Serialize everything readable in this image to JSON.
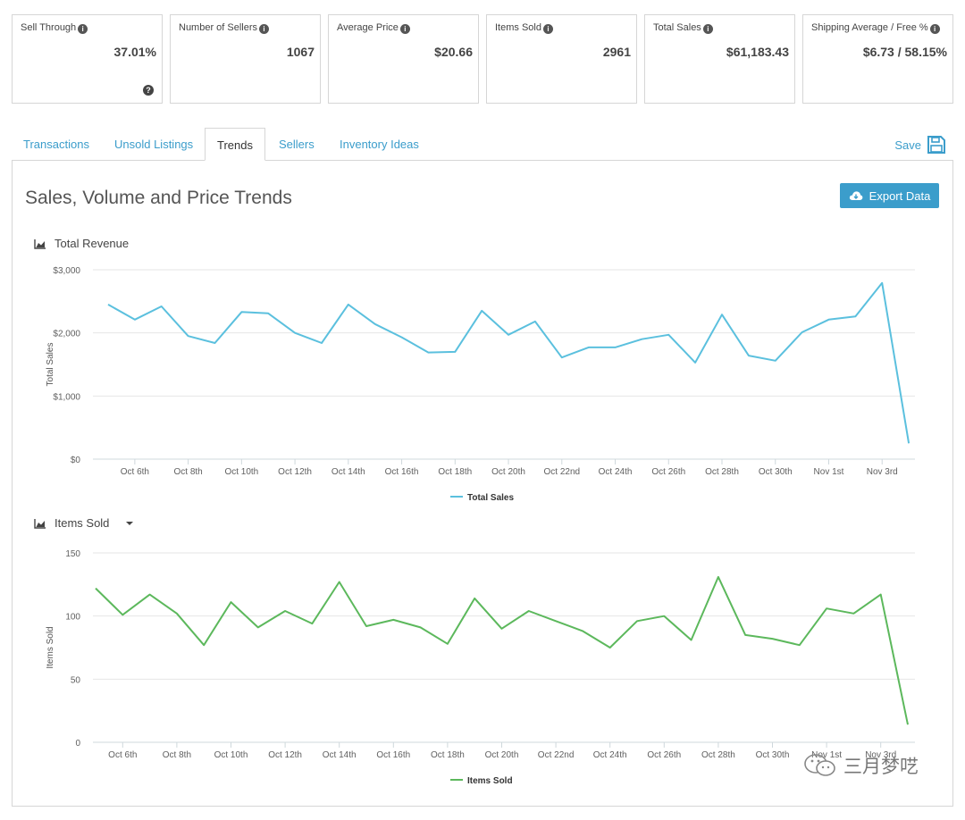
{
  "stats": [
    {
      "label": "Sell Through",
      "value": "37.01%",
      "help": true
    },
    {
      "label": "Number of Sellers",
      "value": "1067"
    },
    {
      "label": "Average Price",
      "value": "$20.66"
    },
    {
      "label": "Items Sold",
      "value": "2961"
    },
    {
      "label": "Total Sales",
      "value": "$61,183.43"
    },
    {
      "label": "Shipping Average / Free %",
      "value": "$6.73 / 58.15%"
    }
  ],
  "tabs": [
    {
      "label": "Transactions",
      "active": false
    },
    {
      "label": "Unsold Listings",
      "active": false
    },
    {
      "label": "Trends",
      "active": true
    },
    {
      "label": "Sellers",
      "active": false
    },
    {
      "label": "Inventory Ideas",
      "active": false
    }
  ],
  "toolbar": {
    "save_label": "Save",
    "export_label": "Export Data"
  },
  "panel": {
    "title": "Sales, Volume and Price Trends"
  },
  "watermark": {
    "text": "三月梦呓"
  },
  "colors": {
    "accent": "#3b9dcb",
    "revenue_line": "#5bc0de",
    "items_line": "#5cb85c"
  },
  "chart_data": [
    {
      "type": "line",
      "title": "Total Revenue",
      "ylabel": "Total Sales",
      "xlabel": "",
      "x": [
        "Oct 5",
        "Oct 6",
        "Oct 7",
        "Oct 8",
        "Oct 9",
        "Oct 10",
        "Oct 11",
        "Oct 12",
        "Oct 13",
        "Oct 14",
        "Oct 15",
        "Oct 16",
        "Oct 17",
        "Oct 18",
        "Oct 19",
        "Oct 20",
        "Oct 21",
        "Oct 22",
        "Oct 23",
        "Oct 24",
        "Oct 25",
        "Oct 26",
        "Oct 27",
        "Oct 28",
        "Oct 29",
        "Oct 30",
        "Oct 31",
        "Nov 1",
        "Nov 2",
        "Nov 3",
        "Nov 4"
      ],
      "tick_labels": [
        "Oct 6th",
        "Oct 8th",
        "Oct 10th",
        "Oct 12th",
        "Oct 14th",
        "Oct 16th",
        "Oct 18th",
        "Oct 20th",
        "Oct 22nd",
        "Oct 24th",
        "Oct 26th",
        "Oct 28th",
        "Oct 30th",
        "Nov 1st",
        "Nov 3rd"
      ],
      "tick_indices": [
        1,
        3,
        5,
        7,
        9,
        11,
        13,
        15,
        17,
        19,
        21,
        23,
        25,
        27,
        29
      ],
      "ylim": [
        0,
        3000
      ],
      "yticks": [
        0,
        1000,
        2000,
        3000
      ],
      "ytick_labels": [
        "$0",
        "$1,000",
        "$2,000",
        "$3,000"
      ],
      "grid": true,
      "legend": "bottom",
      "series": [
        {
          "name": "Total Sales",
          "values": [
            2450,
            2210,
            2420,
            1950,
            1840,
            2330,
            2310,
            2000,
            1840,
            2450,
            2140,
            1930,
            1690,
            1700,
            2350,
            1970,
            2180,
            1610,
            1770,
            1770,
            1900,
            1970,
            1530,
            2290,
            1640,
            1560,
            2010,
            2210,
            2260,
            2790,
            250
          ]
        }
      ]
    },
    {
      "type": "line",
      "title": "Items Sold",
      "ylabel": "Items Sold",
      "xlabel": "",
      "x": [
        "Oct 5",
        "Oct 6",
        "Oct 7",
        "Oct 8",
        "Oct 9",
        "Oct 10",
        "Oct 11",
        "Oct 12",
        "Oct 13",
        "Oct 14",
        "Oct 15",
        "Oct 16",
        "Oct 17",
        "Oct 18",
        "Oct 19",
        "Oct 20",
        "Oct 21",
        "Oct 22",
        "Oct 23",
        "Oct 24",
        "Oct 25",
        "Oct 26",
        "Oct 27",
        "Oct 28",
        "Oct 29",
        "Oct 30",
        "Oct 31",
        "Nov 1",
        "Nov 2",
        "Nov 3",
        "Nov 4"
      ],
      "tick_labels": [
        "Oct 6th",
        "Oct 8th",
        "Oct 10th",
        "Oct 12th",
        "Oct 14th",
        "Oct 16th",
        "Oct 18th",
        "Oct 20th",
        "Oct 22nd",
        "Oct 24th",
        "Oct 26th",
        "Oct 28th",
        "Oct 30th",
        "Nov 1st",
        "Nov 3rd"
      ],
      "tick_indices": [
        1,
        3,
        5,
        7,
        9,
        11,
        13,
        15,
        17,
        19,
        21,
        23,
        25,
        27,
        29
      ],
      "ylim": [
        0,
        150
      ],
      "yticks": [
        0,
        50,
        100,
        150
      ],
      "ytick_labels": [
        "0",
        "50",
        "100",
        "150"
      ],
      "grid": true,
      "legend": "bottom",
      "series": [
        {
          "name": "Items Sold",
          "values": [
            122,
            101,
            117,
            102,
            77,
            111,
            91,
            104,
            94,
            127,
            92,
            97,
            91,
            78,
            114,
            90,
            104,
            96,
            88,
            75,
            96,
            100,
            81,
            131,
            85,
            82,
            77,
            106,
            102,
            117,
            14
          ]
        }
      ]
    }
  ]
}
